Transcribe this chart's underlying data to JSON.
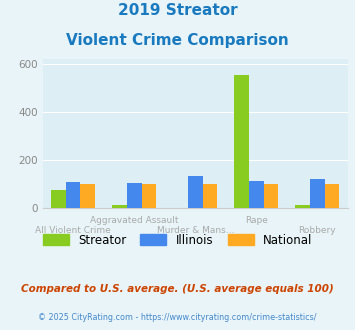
{
  "title_line1": "2019 Streator",
  "title_line2": "Violent Crime Comparison",
  "title_color": "#1a7abf",
  "categories": [
    "All Violent Crime",
    "Aggravated Assault",
    "Murder & Mans...",
    "Rape",
    "Robbery"
  ],
  "upper_labels": [
    "",
    "Aggravated Assault",
    "",
    "Rape",
    ""
  ],
  "lower_labels": [
    "All Violent Crime",
    "",
    "Murder & Mans...",
    "",
    "Robbery"
  ],
  "streator": [
    75,
    13,
    0,
    555,
    13
  ],
  "illinois": [
    110,
    105,
    135,
    112,
    122
  ],
  "national": [
    100,
    100,
    100,
    100,
    100
  ],
  "colors": {
    "streator": "#88cc22",
    "illinois": "#4488ee",
    "national": "#ffaa22"
  },
  "ylim": [
    0,
    620
  ],
  "yticks": [
    0,
    200,
    400,
    600
  ],
  "background_color": "#e8f4f8",
  "plot_bg": "#ddeef5",
  "grid_color": "#ffffff",
  "footnote1": "Compared to U.S. average. (U.S. average equals 100)",
  "footnote2": "© 2025 CityRating.com - https://www.cityrating.com/crime-statistics/",
  "footnote1_color": "#cc4400",
  "footnote2_color": "#4488cc",
  "footnote2_link_color": "#4488cc",
  "xlabel_color": "#aaaaaa",
  "tick_color": "#888888"
}
